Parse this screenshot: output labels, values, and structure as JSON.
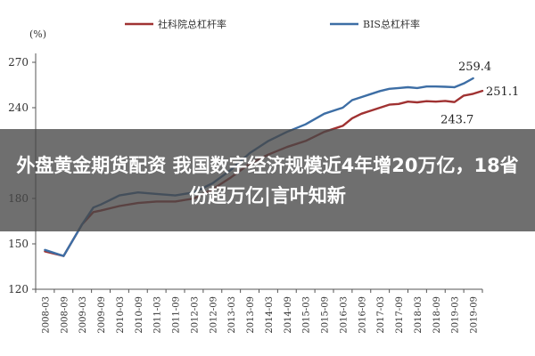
{
  "overlay": {
    "title": "外盘黄金期货配资 我国数字经济规模近4年增20万亿，18省份超万亿|言叶知新"
  },
  "chart_data": {
    "type": "line",
    "unit_label": "(%)",
    "categories": [
      "2008-03",
      "2008-09",
      "2009-03",
      "2009-09",
      "2010-03",
      "2010-09",
      "2011-03",
      "2011-09",
      "2012-03",
      "2012-09",
      "2013-03",
      "2013-09",
      "2014-03",
      "2014-09",
      "2015-03",
      "2015-09",
      "2016-03",
      "2016-09",
      "2017-03",
      "2017-09",
      "2018-03",
      "2018-09",
      "2019-03",
      "2019-09"
    ],
    "x_tick_labels": [
      "2008-03",
      "2008-09",
      "2009-03",
      "2009-09",
      "2010-03",
      "2010-09",
      "2011-03",
      "2011-09",
      "2012-03",
      "2012-09",
      "2013-03",
      "2013-09",
      "2014-03",
      "2014-09",
      "2015-03",
      "2015-09",
      "2016-03",
      "2016-09",
      "2017-03",
      "2017-09",
      "2018-03",
      "2018-09",
      "2019-03",
      "2019-09"
    ],
    "ylim": [
      120,
      270
    ],
    "y_ticks": [
      120,
      150,
      180,
      240,
      270
    ],
    "grid": false,
    "legend_position": "top",
    "series": [
      {
        "name": "社科院总杠杆率",
        "color": "#a03232",
        "points": [
          {
            "x": 0,
            "y": 145
          },
          {
            "x": 1,
            "y": 142
          },
          {
            "x": 2,
            "y": 163
          },
          {
            "x": 2.6,
            "y": 171
          },
          {
            "x": 3,
            "y": 172
          },
          {
            "x": 4,
            "y": 175
          },
          {
            "x": 5,
            "y": 177
          },
          {
            "x": 6,
            "y": 178
          },
          {
            "x": 7,
            "y": 178
          },
          {
            "x": 8,
            "y": 180
          },
          {
            "x": 9,
            "y": 186
          },
          {
            "x": 10,
            "y": 194
          },
          {
            "x": 11,
            "y": 203
          },
          {
            "x": 12,
            "y": 209
          },
          {
            "x": 13,
            "y": 214
          },
          {
            "x": 14,
            "y": 218
          },
          {
            "x": 15,
            "y": 224
          },
          {
            "x": 16,
            "y": 228
          },
          {
            "x": 16.5,
            "y": 233
          },
          {
            "x": 17,
            "y": 236
          },
          {
            "x": 17.5,
            "y": 238
          },
          {
            "x": 18,
            "y": 240
          },
          {
            "x": 18.5,
            "y": 242
          },
          {
            "x": 19,
            "y": 242.5
          },
          {
            "x": 19.5,
            "y": 244
          },
          {
            "x": 20,
            "y": 243.5
          },
          {
            "x": 20.5,
            "y": 244.3
          },
          {
            "x": 21,
            "y": 244
          },
          {
            "x": 21.5,
            "y": 244.5
          },
          {
            "x": 22,
            "y": 243.7
          },
          {
            "x": 22.5,
            "y": 248
          },
          {
            "x": 23,
            "y": 249.2
          },
          {
            "x": 23.5,
            "y": 251.1
          }
        ]
      },
      {
        "name": "BIS总杠杆率",
        "color": "#3d6ea5",
        "points": [
          {
            "x": 0,
            "y": 146
          },
          {
            "x": 1,
            "y": 142
          },
          {
            "x": 2,
            "y": 163
          },
          {
            "x": 2.6,
            "y": 174
          },
          {
            "x": 3,
            "y": 176
          },
          {
            "x": 4,
            "y": 182
          },
          {
            "x": 5,
            "y": 184
          },
          {
            "x": 6,
            "y": 183
          },
          {
            "x": 7,
            "y": 182
          },
          {
            "x": 8,
            "y": 184
          },
          {
            "x": 9,
            "y": 190
          },
          {
            "x": 10,
            "y": 199
          },
          {
            "x": 11,
            "y": 210
          },
          {
            "x": 12,
            "y": 218
          },
          {
            "x": 13,
            "y": 224
          },
          {
            "x": 14,
            "y": 229
          },
          {
            "x": 15,
            "y": 236
          },
          {
            "x": 16,
            "y": 240
          },
          {
            "x": 16.5,
            "y": 245
          },
          {
            "x": 17,
            "y": 247
          },
          {
            "x": 17.5,
            "y": 249
          },
          {
            "x": 18,
            "y": 251
          },
          {
            "x": 18.5,
            "y": 252.5
          },
          {
            "x": 19,
            "y": 253
          },
          {
            "x": 19.5,
            "y": 253.5
          },
          {
            "x": 20,
            "y": 253
          },
          {
            "x": 20.5,
            "y": 254
          },
          {
            "x": 21,
            "y": 254
          },
          {
            "x": 21.5,
            "y": 253.8
          },
          {
            "x": 22,
            "y": 253.5
          },
          {
            "x": 22.5,
            "y": 256
          },
          {
            "x": 23,
            "y": 259.4
          }
        ]
      }
    ],
    "annotations": [
      {
        "text": "259.4",
        "x": 23,
        "y": 259.4,
        "anchor": "above"
      },
      {
        "text": "251.1",
        "x": 23.5,
        "y": 251.1,
        "anchor": "right"
      },
      {
        "text": "243.7",
        "x": 22,
        "y": 243.7,
        "anchor": "below"
      }
    ]
  }
}
